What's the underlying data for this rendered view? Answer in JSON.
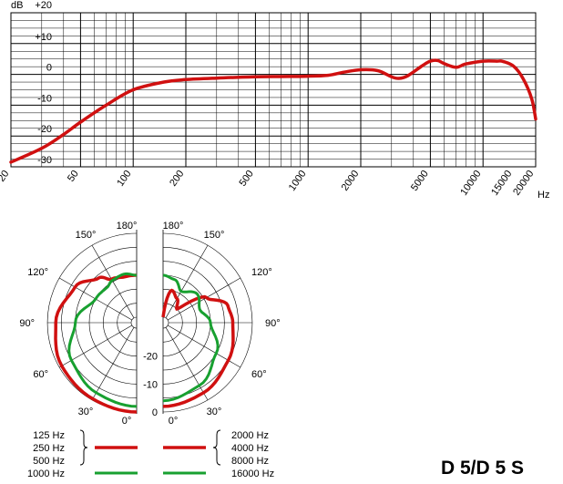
{
  "freq_response": {
    "type": "line",
    "y_unit": "dB",
    "x_unit": "Hz",
    "y_ticks": [
      "+20",
      "+10",
      "0",
      "-10",
      "-20",
      "-30"
    ],
    "ylim": [
      -30,
      20
    ],
    "x_ticks": [
      "20",
      "50",
      "100",
      "200",
      "500",
      "1000",
      "2000",
      "5000",
      "10000",
      "15000",
      "20000"
    ],
    "xlim": [
      20,
      20000
    ],
    "x_scale": "log",
    "series_color": "#d01010",
    "points": [
      [
        20,
        -28.5
      ],
      [
        30,
        -24
      ],
      [
        40,
        -19.5
      ],
      [
        50,
        -15.5
      ],
      [
        70,
        -10
      ],
      [
        100,
        -5
      ],
      [
        150,
        -2.5
      ],
      [
        200,
        -1.7
      ],
      [
        300,
        -1.2
      ],
      [
        500,
        -0.8
      ],
      [
        700,
        -0.7
      ],
      [
        1000,
        -0.6
      ],
      [
        1300,
        -0.3
      ],
      [
        1600,
        0.7
      ],
      [
        2000,
        1.5
      ],
      [
        2500,
        1.2
      ],
      [
        3000,
        -0.8
      ],
      [
        3300,
        -1.3
      ],
      [
        3700,
        -0.5
      ],
      [
        4500,
        2.8
      ],
      [
        5000,
        4.3
      ],
      [
        5500,
        4.5
      ],
      [
        6000,
        3.5
      ],
      [
        7000,
        2.3
      ],
      [
        8000,
        3.4
      ],
      [
        10000,
        4.3
      ],
      [
        12000,
        4.3
      ],
      [
        13000,
        4.2
      ],
      [
        15000,
        2.6
      ],
      [
        17000,
        -1.5
      ],
      [
        19000,
        -8
      ],
      [
        20000,
        -14.5
      ]
    ]
  },
  "polar": {
    "type": "polar",
    "angle_labels": [
      "180°",
      "150°",
      "120°",
      "90°",
      "60°",
      "30°",
      "0°"
    ],
    "level_labels": [
      "-20",
      "-10",
      "0"
    ],
    "rlim": [
      -30,
      0
    ],
    "red_color": "#d01010",
    "green_color": "#18a030",
    "left_red": [
      [
        0,
        0
      ],
      [
        30,
        -0.5
      ],
      [
        60,
        -1
      ],
      [
        90,
        -3
      ],
      [
        120,
        -6.5
      ],
      [
        140,
        -11
      ],
      [
        150,
        -14
      ],
      [
        165,
        -15
      ],
      [
        180,
        -15
      ]
    ],
    "left_green": [
      [
        0,
        -2
      ],
      [
        30,
        -3
      ],
      [
        60,
        -5
      ],
      [
        90,
        -10
      ],
      [
        120,
        -15
      ],
      [
        140,
        -15.5
      ],
      [
        150,
        -14.5
      ],
      [
        165,
        -14
      ],
      [
        180,
        -15
      ]
    ],
    "right_red": [
      [
        0,
        -2
      ],
      [
        30,
        -3
      ],
      [
        60,
        -5
      ],
      [
        90,
        -7
      ],
      [
        105,
        -8
      ],
      [
        120,
        -14
      ],
      [
        135,
        -25
      ],
      [
        150,
        -22
      ],
      [
        165,
        -20
      ],
      [
        180,
        -30
      ]
    ],
    "right_green": [
      [
        0,
        -4
      ],
      [
        30,
        -6
      ],
      [
        60,
        -10
      ],
      [
        90,
        -15
      ],
      [
        110,
        -18
      ],
      [
        130,
        -16
      ],
      [
        150,
        -19
      ],
      [
        165,
        -16
      ],
      [
        180,
        -15
      ]
    ]
  },
  "legend": {
    "left_red_labels": [
      "125 Hz",
      "250 Hz",
      "500 Hz"
    ],
    "left_green_label": "1000 Hz",
    "right_red_labels": [
      "2000 Hz",
      "4000 Hz",
      "8000 Hz"
    ],
    "right_green_label": "16000 Hz"
  },
  "model": "D 5/D 5 S"
}
